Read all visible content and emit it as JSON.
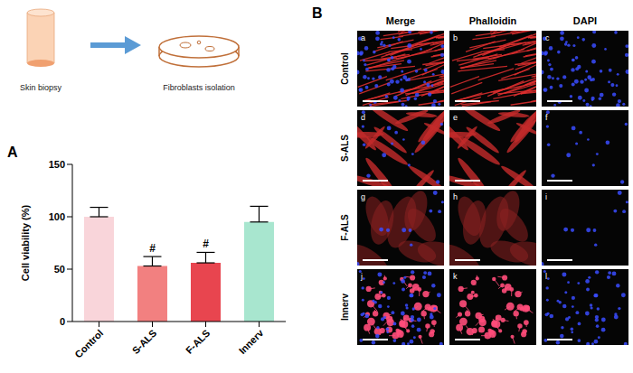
{
  "diagram": {
    "steps": [
      "Skin biopsy",
      "Fibroblasts isolation"
    ]
  },
  "chart_data": {
    "panel_label": "A",
    "type": "bar",
    "y_label": "Cell viability (%)",
    "categories": [
      "Control",
      "S-ALS",
      "F-ALS",
      "Innerv"
    ],
    "values": [
      100,
      53,
      56,
      95
    ],
    "errors": [
      9,
      9,
      10,
      15
    ],
    "significance": [
      null,
      "#",
      "#",
      null
    ],
    "colors": [
      "#f9d5da",
      "#f28080",
      "#e8454f",
      "#a8e6cf"
    ],
    "ylim": [
      0,
      150
    ],
    "yticks": [
      0,
      50,
      100,
      150
    ]
  },
  "image_grid": {
    "panel_label": "B",
    "columns": [
      "Merge",
      "Phalloidin",
      "DAPI"
    ],
    "rows": [
      "Control",
      "S-ALS",
      "F-ALS",
      "Innerv"
    ],
    "panel_letters": [
      "a",
      "b",
      "c",
      "d",
      "e",
      "f",
      "g",
      "h",
      "i",
      "j",
      "k",
      "l"
    ]
  }
}
